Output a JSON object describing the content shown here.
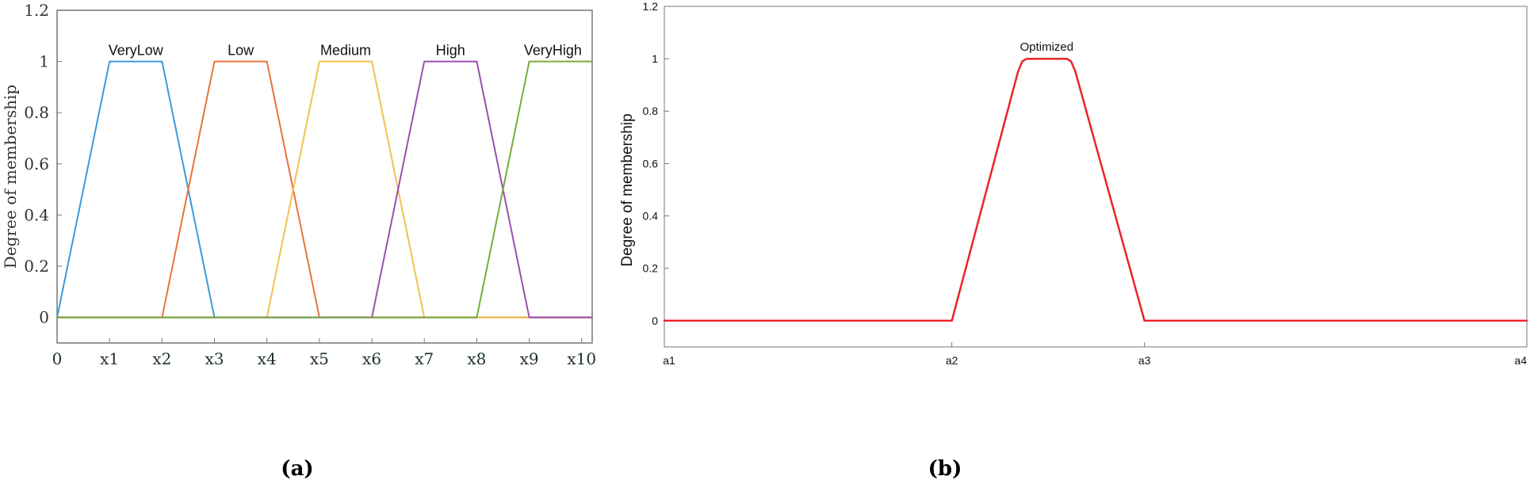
{
  "chart_data": [
    {
      "type": "line",
      "panel_label": "(a)",
      "title": "",
      "xlabel": "",
      "ylabel": "Degree of membership",
      "xlim": [
        0,
        10.2
      ],
      "ylim": [
        -0.1,
        1.2
      ],
      "grid": false,
      "xticks": [
        {
          "v": 0,
          "label": "0"
        },
        {
          "v": 1,
          "label": "x1"
        },
        {
          "v": 2,
          "label": "x2"
        },
        {
          "v": 3,
          "label": "x3"
        },
        {
          "v": 4,
          "label": "x4"
        },
        {
          "v": 5,
          "label": "x5"
        },
        {
          "v": 6,
          "label": "x6"
        },
        {
          "v": 7,
          "label": "x7"
        },
        {
          "v": 8,
          "label": "x8"
        },
        {
          "v": 9,
          "label": "x9"
        },
        {
          "v": 10,
          "label": "x10"
        }
      ],
      "yticks": [
        {
          "v": 0,
          "label": "0"
        },
        {
          "v": 0.2,
          "label": "0.2"
        },
        {
          "v": 0.4,
          "label": "0.4"
        },
        {
          "v": 0.6,
          "label": "0.6"
        },
        {
          "v": 0.8,
          "label": "0.8"
        },
        {
          "v": 1,
          "label": "1"
        },
        {
          "v": 1.2,
          "label": "1.2"
        }
      ],
      "series": [
        {
          "name": "VeryLow",
          "color": "#3a9ad9",
          "x": [
            0,
            1,
            2,
            3,
            10.2
          ],
          "y": [
            0,
            1,
            1,
            0,
            0
          ]
        },
        {
          "name": "Low",
          "color": "#e8733a",
          "x": [
            0,
            2,
            3,
            4,
            5,
            10.2
          ],
          "y": [
            0,
            0,
            1,
            1,
            0,
            0
          ]
        },
        {
          "name": "Medium",
          "color": "#f2c14e",
          "x": [
            0,
            4,
            5,
            6,
            7,
            10.2
          ],
          "y": [
            0,
            0,
            1,
            1,
            0,
            0
          ]
        },
        {
          "name": "High",
          "color": "#9b4fb0",
          "x": [
            0,
            6,
            7,
            8,
            9,
            10.2
          ],
          "y": [
            0,
            0,
            1,
            1,
            0,
            0
          ]
        },
        {
          "name": "VeryHigh",
          "color": "#77ac3c",
          "x": [
            0,
            8,
            9,
            10.2
          ],
          "y": [
            0,
            0,
            1,
            1
          ]
        }
      ],
      "labels": [
        {
          "text": "VeryLow",
          "x": 1.5,
          "y": 1
        },
        {
          "text": "Low",
          "x": 3.5,
          "y": 1
        },
        {
          "text": "Medium",
          "x": 5.5,
          "y": 1
        },
        {
          "text": "High",
          "x": 7.5,
          "y": 1
        },
        {
          "text": "VeryHigh",
          "x": 9.45,
          "y": 1
        }
      ]
    },
    {
      "type": "line",
      "panel_label": "(b)",
      "title": "",
      "xlabel": "",
      "ylabel": "Degree of membership",
      "xlim": [
        0,
        3
      ],
      "ylim": [
        -0.1,
        1.2
      ],
      "grid": false,
      "xticks": [
        {
          "v": 0,
          "label": "a1"
        },
        {
          "v": 1,
          "label": "a2"
        },
        {
          "v": 1.67,
          "label": "a3"
        },
        {
          "v": 3,
          "label": "a4"
        }
      ],
      "yticks": [
        {
          "v": 0,
          "label": "0"
        },
        {
          "v": 0.2,
          "label": "0.2"
        },
        {
          "v": 0.4,
          "label": "0.4"
        },
        {
          "v": 0.6,
          "label": "0.6"
        },
        {
          "v": 0.8,
          "label": "0.8"
        },
        {
          "v": 1,
          "label": "1"
        },
        {
          "v": 1.2,
          "label": "1.2"
        }
      ],
      "series": [
        {
          "name": "Optimized",
          "color": "#e8252a",
          "x": [
            0,
            1,
            1.23,
            1.245,
            1.26,
            1.4,
            1.415,
            1.43,
            1.67,
            3
          ],
          "y": [
            0,
            0,
            0.95,
            0.99,
            1,
            1,
            0.99,
            0.95,
            0,
            0
          ]
        }
      ],
      "labels": [
        {
          "text": "Optimized",
          "x": 1.33,
          "y": 1
        }
      ]
    }
  ]
}
